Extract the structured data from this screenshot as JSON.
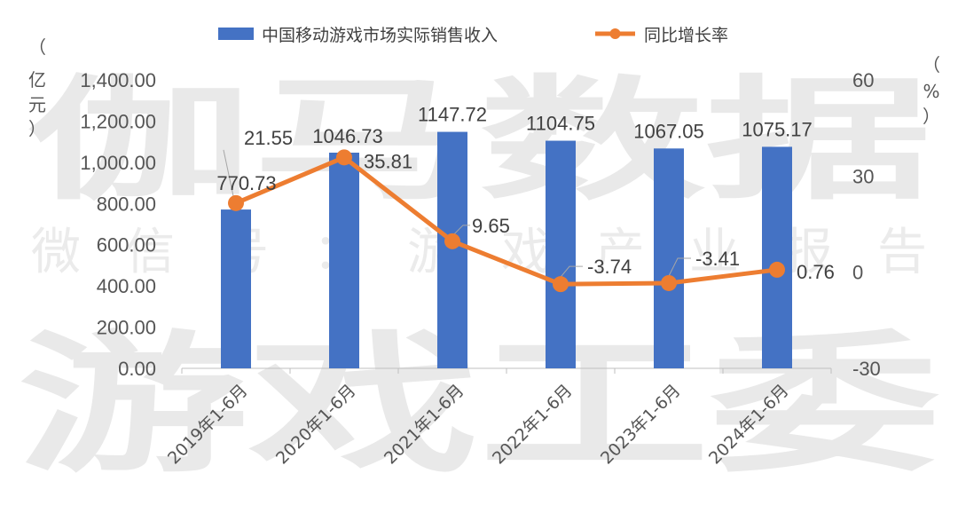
{
  "chart_data": {
    "type": "bar",
    "categories": [
      "2019年1-6月",
      "2020年1-6月",
      "2021年1-6月",
      "2022年1-6月",
      "2023年1-6月",
      "2024年1-6月"
    ],
    "series": [
      {
        "name": "中国移动游戏市场实际销售收入",
        "type": "bar",
        "axis": "left",
        "values": [
          770.73,
          1046.73,
          1147.72,
          1104.75,
          1067.05,
          1075.17
        ],
        "labels": [
          "770.73",
          "1046.73",
          "1147.72",
          "1104.75",
          "1067.05",
          "1075.17"
        ]
      },
      {
        "name": "同比增长率",
        "type": "line",
        "axis": "right",
        "values": [
          21.55,
          35.81,
          9.65,
          -3.74,
          -3.41,
          0.76
        ],
        "labels": [
          "21.55",
          "35.81",
          "9.65",
          "-3.74",
          "-3.41",
          "0.76"
        ]
      }
    ],
    "y_left": {
      "unit_chars": [
        "（",
        "亿",
        "元",
        "）"
      ],
      "ylim": [
        0,
        1400
      ],
      "ticks": [
        "0.00",
        "200.00",
        "400.00",
        "600.00",
        "800.00",
        "1,000.00",
        "1,200.00",
        "1,400.00"
      ]
    },
    "y_right": {
      "unit_chars": [
        "（",
        "%",
        "）"
      ],
      "ylim": [
        -30,
        60
      ],
      "ticks": [
        "-30",
        "0",
        "30",
        "60"
      ]
    },
    "legend_position": "top-center",
    "grid": false
  },
  "watermarks": [
    "伽马数据",
    "微信号：游戏产业报告",
    "游戏工委"
  ],
  "colors": {
    "bar": "#4472C4",
    "line": "#ED7D31",
    "text": "#555555",
    "watermark": "#e9e9e9"
  }
}
